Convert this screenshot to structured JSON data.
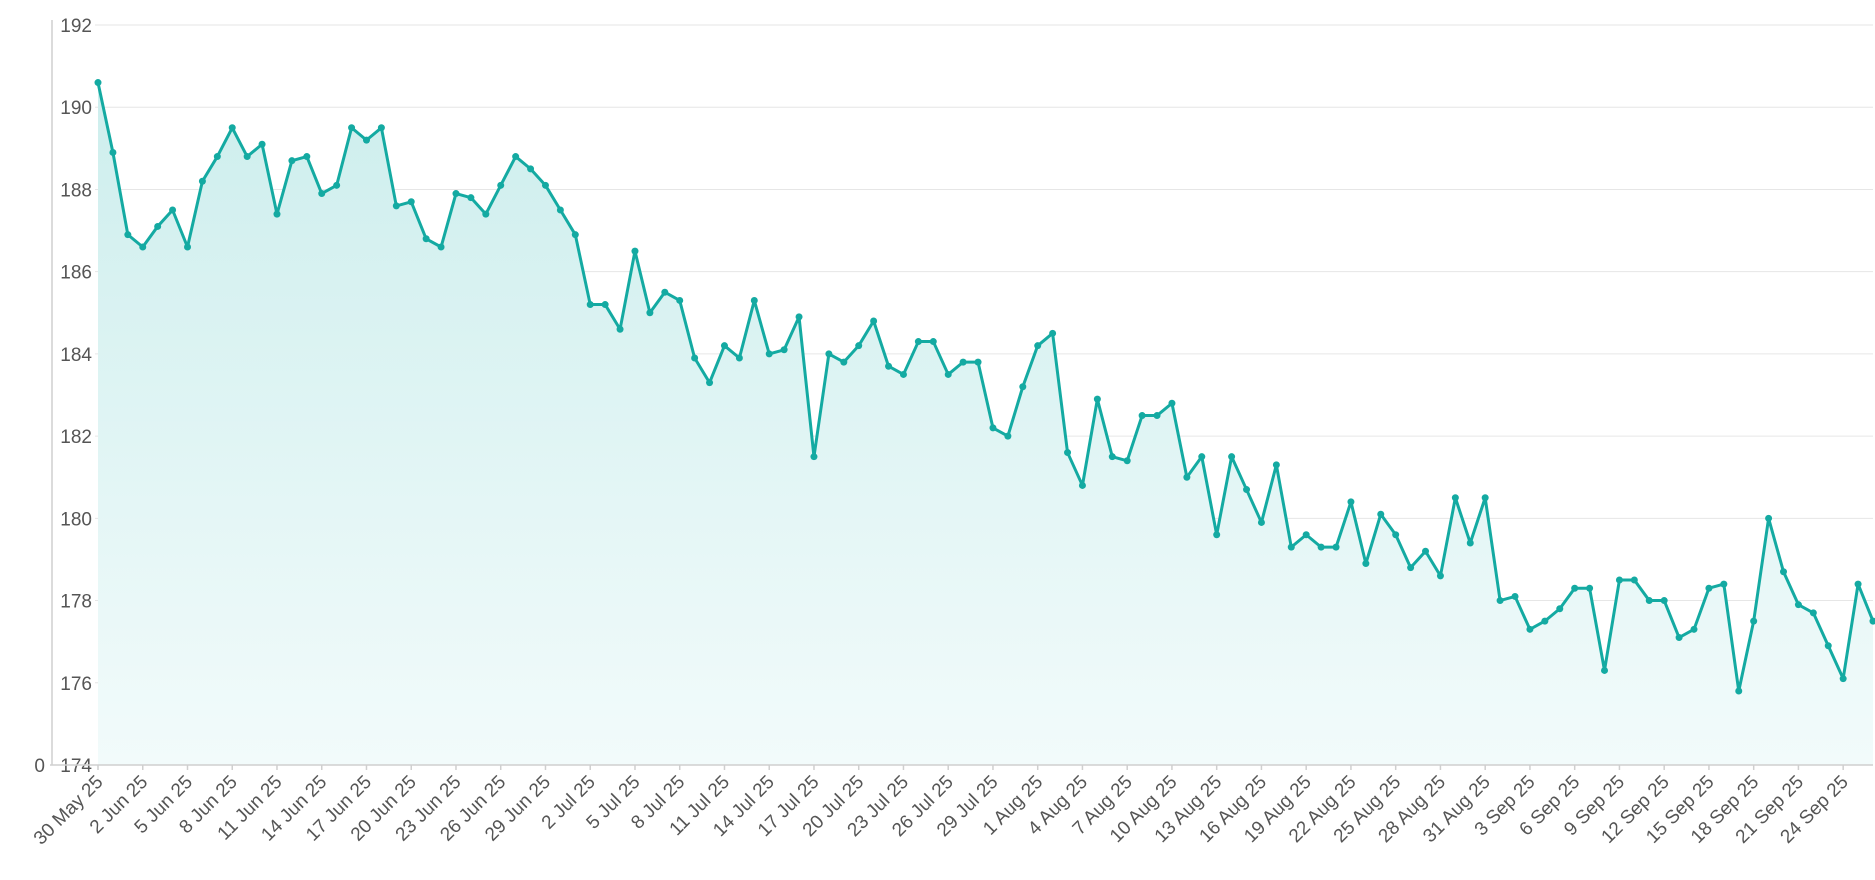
{
  "chart_data": {
    "type": "area",
    "ylim": [
      174,
      192
    ],
    "y_ticks": [
      174,
      176,
      178,
      180,
      182,
      184,
      186,
      188,
      190,
      192
    ],
    "y_baseline_label": "0",
    "grid": true,
    "legend": "none",
    "colors": {
      "line": "#14aaa2",
      "fill_top": "#cdeeed",
      "fill_bottom": "#f2fbfb"
    },
    "x_tick_labels": [
      "30 May 25",
      "2 Jun 25",
      "5 Jun 25",
      "8 Jun 25",
      "11 Jun 25",
      "14 Jun 25",
      "17 Jun 25",
      "20 Jun 25",
      "23 Jun 25",
      "26 Jun 25",
      "29 Jun 25",
      "2 Jul 25",
      "5 Jul 25",
      "8 Jul 25",
      "11 Jul 25",
      "14 Jul 25",
      "17 Jul 25",
      "20 Jul 25",
      "23 Jul 25",
      "26 Jul 25",
      "29 Jul 25",
      "1 Aug 25",
      "4 Aug 25",
      "7 Aug 25",
      "10 Aug 25",
      "13 Aug 25",
      "16 Aug 25",
      "19 Aug 25",
      "22 Aug 25",
      "25 Aug 25",
      "28 Aug 25",
      "31 Aug 25",
      "3 Sep 25",
      "6 Sep 25",
      "9 Sep 25",
      "12 Sep 25",
      "15 Sep 25",
      "18 Sep 25",
      "21 Sep 25",
      "24 Sep 25"
    ],
    "x_tick_every": 3,
    "series": [
      {
        "values": [
          190.6,
          188.9,
          186.9,
          186.6,
          187.1,
          187.5,
          186.6,
          188.2,
          188.8,
          189.5,
          188.8,
          189.1,
          187.4,
          188.7,
          188.8,
          187.9,
          188.1,
          189.5,
          189.2,
          189.5,
          187.6,
          187.7,
          186.8,
          186.6,
          187.9,
          187.8,
          187.4,
          188.1,
          188.8,
          188.5,
          188.1,
          187.5,
          186.9,
          185.2,
          185.2,
          184.6,
          186.5,
          185.0,
          185.5,
          185.3,
          183.9,
          183.3,
          184.2,
          183.9,
          185.3,
          184.0,
          184.1,
          184.9,
          181.5,
          184.0,
          183.8,
          184.2,
          184.8,
          183.7,
          183.5,
          184.3,
          184.3,
          183.5,
          183.8,
          183.8,
          182.2,
          182.0,
          183.2,
          184.2,
          184.5,
          181.6,
          180.8,
          182.9,
          181.5,
          181.4,
          182.5,
          182.5,
          182.8,
          181.0,
          181.5,
          179.6,
          181.5,
          180.7,
          179.9,
          181.3,
          179.3,
          179.6,
          179.3,
          179.3,
          180.4,
          178.9,
          180.1,
          179.6,
          178.8,
          179.2,
          178.6,
          180.5,
          179.4,
          180.5,
          178.0,
          178.1,
          177.3,
          177.5,
          177.8,
          178.3,
          178.3,
          176.3,
          178.5,
          178.5,
          178.0,
          178.0,
          177.1,
          177.3,
          178.3,
          178.4,
          175.8,
          177.5,
          180.0,
          178.7,
          177.9,
          177.7,
          176.9,
          176.1,
          178.4,
          177.5
        ]
      }
    ]
  }
}
